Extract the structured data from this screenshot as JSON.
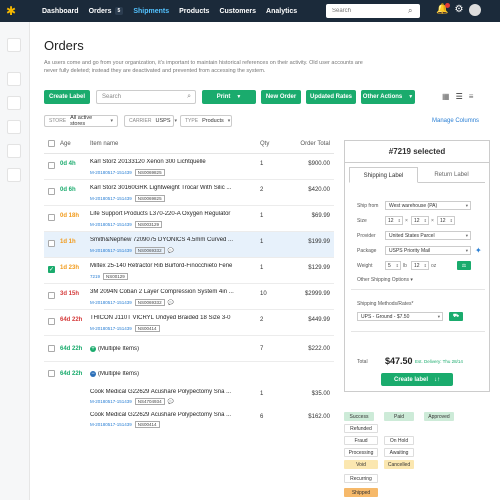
{
  "topbar": {
    "nav": [
      {
        "label": "Dashboard"
      },
      {
        "label": "Orders",
        "badge": "5"
      },
      {
        "label": "Shipments",
        "active": true
      },
      {
        "label": "Products"
      },
      {
        "label": "Customers"
      },
      {
        "label": "Analytics"
      }
    ],
    "search_placeholder": "Search",
    "icons": [
      "search-icon",
      "bell-icon",
      "gear-icon",
      "avatar"
    ]
  },
  "page": {
    "title": "Orders",
    "description": "As users come and go from your organization, it's important to maintain historical references on their activity. Old user accounts are never fully deleted; instead they are deactivated and prevented from accessing the system."
  },
  "toolbar": {
    "create_label": "Create Label",
    "search_placeholder": "Search",
    "print": "Print",
    "new_order": "New Order",
    "updated_rates": "Updated Rates",
    "other_actions": "Other Actions"
  },
  "filters": [
    {
      "label": "STORE",
      "value": "All active stores"
    },
    {
      "label": "CARRIER",
      "value": "USPS"
    },
    {
      "label": "TYPE",
      "value": "Products"
    }
  ],
  "manage_columns": "Manage Columns",
  "table": {
    "headers": {
      "age": "Age",
      "item": "Item name",
      "qty": "Qty",
      "total": "Order Total"
    },
    "rows": [
      {
        "age": "0d 4h",
        "age_color": "green",
        "name": "Karl Storz 20133120 Xenon 300 Lichtquelle",
        "mid": "M-20180517-151439",
        "sku": "NS0069825",
        "note": false,
        "qty": "1",
        "total": "$900.00"
      },
      {
        "age": "0d 6h",
        "age_color": "green",
        "name": "Karl Storz 30160GRK Lightweight Trocar With Silic ...",
        "mid": "M-20180517-151439",
        "sku": "NS0069825",
        "note": false,
        "qty": "2",
        "total": "$420.00"
      },
      {
        "age": "0d 18h",
        "age_color": "orange",
        "name": "Life Support Products L370-220-A Oxygen Regulator",
        "mid": "M-20180517-151439",
        "sku": "NS003129",
        "note": false,
        "qty": "1",
        "total": "$69.99"
      },
      {
        "age": "1d 1h",
        "age_color": "orange",
        "name": "Smith&Nephew 7209075 DYONICS 4.5mm Curved ...",
        "mid": "M-20180517-151439",
        "sku": "NS0069332",
        "note": true,
        "qty": "1",
        "total": "$199.99",
        "selected": true
      },
      {
        "age": "1d 23h",
        "age_color": "orange",
        "name": "Miltex 25-140 Retractor Rib Burford-Finocchieto Fene",
        "mid": "7219",
        "sku": "NS00129",
        "note": false,
        "qty": "1",
        "total": "$129.99",
        "checked": true
      },
      {
        "age": "3d 15h",
        "age_color": "red",
        "name": "3M 2094N Coban 2 Layer Compression System 4in ...",
        "mid": "M-20180517-151439",
        "sku": "NS0069332",
        "note": true,
        "qty": "10",
        "total": "$2999.99"
      },
      {
        "age": "64d 22h",
        "age_color": "red",
        "name": "THICON J110T VICRYL Undyed Braided 18 Size 3-0",
        "mid": "M-20180517-151439",
        "sku": "NS00414",
        "note": false,
        "qty": "2",
        "total": "$449.99"
      },
      {
        "age": "64d 22h",
        "age_color": "green",
        "name": "(Multiple Items)",
        "multi": "plus",
        "qty": "7",
        "total": "$222.00"
      },
      {
        "age": "64d 22h",
        "age_color": "green",
        "name": "(Multiple Items)",
        "multi": "minus",
        "qty": "",
        "total": ""
      }
    ],
    "subrows": [
      {
        "name": "Cook Medical G22629 Acushare Polypectomy Sna ...",
        "mid": "M-20180517-151439",
        "sku": "NS4704934",
        "note": true,
        "qty": "1",
        "total": "$35.00"
      },
      {
        "name": "Cook Medical G22629 Acushare Polypectomy Sna ...",
        "mid": "M-20180517-151439",
        "sku": "NS00414",
        "note": false,
        "qty": "6",
        "total": "$162.00"
      }
    ]
  },
  "panel": {
    "header": "#7219 selected",
    "tabs": [
      "Shipping Label",
      "Return Label"
    ],
    "ship_from_label": "Ship from",
    "ship_from": "West warehouse (PA)",
    "size_label": "Size",
    "size": [
      "12",
      "12",
      "12"
    ],
    "provider_label": "Provider",
    "provider": "United States Parcel",
    "package_label": "Package",
    "package": "USPS Priority Mail",
    "weight_label": "Weight",
    "weight_lb": "5",
    "weight_lb_unit": "lb",
    "weight_oz": "12",
    "weight_oz_unit": "oz",
    "other_options": "Other Shipping Options",
    "methods_label": "Shipping Methods/Rates*",
    "method": "UPS - Ground - $7.50",
    "total_label": "Total",
    "total": "$47.50",
    "est": "Est. Delivery: Thu 28/14",
    "create_label": "Create label"
  },
  "badges": [
    {
      "label": "Success",
      "bg": "#cdebd8"
    },
    {
      "label": "Paid",
      "bg": "#cdebd8"
    },
    {
      "label": "Approved",
      "bg": "#cdebd8"
    },
    {
      "label": "Refunded",
      "bg": "#fff"
    },
    {
      "label": "Fraud",
      "bg": "#fff"
    },
    {
      "label": "On Hold",
      "bg": "#fff"
    },
    {
      "label": "Processing",
      "bg": "#fff"
    },
    {
      "label": "Awaiting",
      "bg": "#fff"
    },
    {
      "label": "Void",
      "bg": "#fbe7b0"
    },
    {
      "label": "Cancelled",
      "bg": "#fbe7b0"
    },
    {
      "label": "Recurring",
      "bg": "#fff"
    },
    {
      "label": "Shipped",
      "bg": "#f6b96a"
    }
  ]
}
